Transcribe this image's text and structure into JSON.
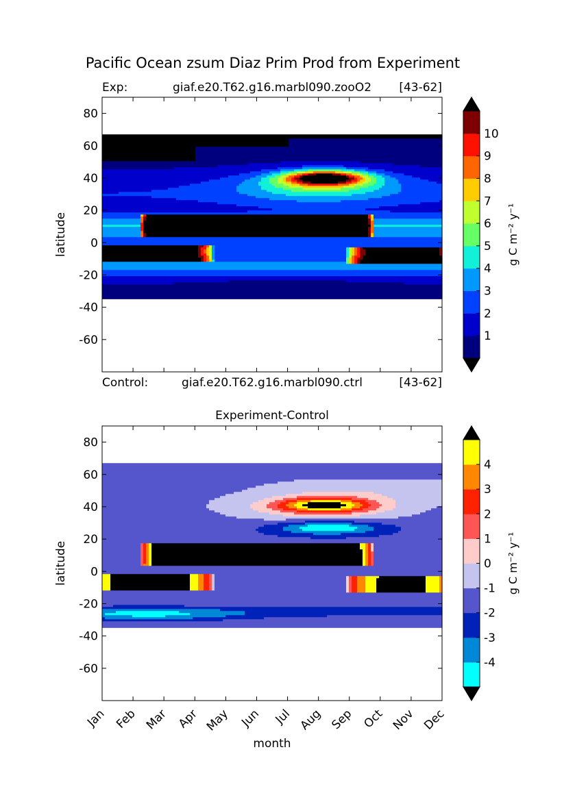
{
  "page_title": "Pacific Ocean zsum Diaz Prim Prod from Experiment",
  "chart_data": [
    {
      "type": "heatmap",
      "subtitle_left": "Exp:",
      "subtitle_center": "giaf.e20.T62.g16.marbl090.zooO2",
      "subtitle_right": "[43-62]",
      "bottom_left": "Control:",
      "bottom_center": "giaf.e20.T62.g16.marbl090.ctrl",
      "bottom_right": "[43-62]",
      "xlabel": "",
      "ylabel": "latitude",
      "x": [
        "Jan",
        "Feb",
        "Mar",
        "Apr",
        "May",
        "Jun",
        "Jul",
        "Aug",
        "Sep",
        "Oct",
        "Nov",
        "Dec"
      ],
      "y_ticks": [
        80,
        60,
        40,
        20,
        0,
        -20,
        -40,
        -60
      ],
      "ylim": [
        -80,
        90
      ],
      "data_lat_range": [
        -34,
        67
      ],
      "colorbar": {
        "label": "g C m⁻² y⁻¹",
        "levels": [
          0,
          1,
          2,
          3,
          4,
          5,
          6,
          7,
          8,
          9,
          10,
          11
        ],
        "tick_labels": [
          "1",
          "2",
          "3",
          "4",
          "5",
          "6",
          "7",
          "8",
          "9",
          "10"
        ],
        "colors": [
          "#00007f",
          "#0000cc",
          "#0040ff",
          "#0099ff",
          "#11f0d8",
          "#66ff66",
          "#c0ff30",
          "#ffcc00",
          "#ff6600",
          "#ff1100",
          "#7f0000"
        ],
        "under_color": "#000000",
        "over_color": "#000000"
      },
      "features": [
        {
          "name": "no data north",
          "month_start": 0,
          "month_end": 11,
          "lat_min": 50,
          "lat_max": 67,
          "value": -1
        },
        {
          "name": "north subtropical maximum",
          "month_start": 6.5,
          "month_end": 8.5,
          "lat_min": 36,
          "lat_max": 46,
          "value": 11
        },
        {
          "name": "equatorial north band",
          "month_start": 1.5,
          "month_end": 8.5,
          "lat_min": 3,
          "lat_max": 18,
          "value": -1
        },
        {
          "name": "equatorial south band early",
          "month_start": 0,
          "month_end": 3.5,
          "lat_min": -12,
          "lat_max": -2,
          "value": -1
        },
        {
          "name": "equatorial south band late",
          "month_start": 8.0,
          "month_end": 11,
          "lat_min": -13,
          "lat_max": -3,
          "value": -1
        }
      ]
    },
    {
      "type": "heatmap",
      "title": "Experiment-Control",
      "xlabel": "month",
      "ylabel": "latitude",
      "x": [
        "Jan",
        "Feb",
        "Mar",
        "Apr",
        "May",
        "Jun",
        "Jul",
        "Aug",
        "Sep",
        "Oct",
        "Nov",
        "Dec"
      ],
      "y_ticks": [
        80,
        60,
        40,
        20,
        0,
        -20,
        -40,
        -60
      ],
      "ylim": [
        -80,
        90
      ],
      "data_lat_range": [
        -34,
        67
      ],
      "colorbar": {
        "label": "g C m⁻² y⁻¹",
        "levels": [
          -5,
          -4,
          -3,
          -2,
          -1,
          0,
          1,
          2,
          3,
          4,
          5
        ],
        "tick_labels": [
          "-4",
          "-3",
          "-2",
          "-1",
          "0",
          "1",
          "2",
          "3",
          "4"
        ],
        "colors": [
          "#00ffff",
          "#0088d8",
          "#0022b8",
          "#5555cc",
          "#c4c4ee",
          "#ffcccc",
          "#ff5555",
          "#ff2200",
          "#ff8800",
          "#ffff00"
        ],
        "under_color": "#000000",
        "over_color": "#000000"
      },
      "features": [
        {
          "name": "north positive anomaly",
          "month_start": 6.2,
          "month_end": 8.2,
          "lat_min": 37,
          "lat_max": 45,
          "value": 5
        },
        {
          "name": "north negative anomaly",
          "month_start": 6.0,
          "month_end": 9.0,
          "lat_min": 22,
          "lat_max": 30,
          "value": -4.5
        },
        {
          "name": "equatorial north band",
          "month_start": 1.5,
          "month_end": 8.5,
          "lat_min": 3,
          "lat_max": 18,
          "value": 5
        },
        {
          "name": "equatorial south band early",
          "month_start": 0,
          "month_end": 3.5,
          "lat_min": -12,
          "lat_max": -2,
          "value": 5
        },
        {
          "name": "equatorial south band late",
          "month_start": 8.0,
          "month_end": 11,
          "lat_min": -13,
          "lat_max": -3,
          "value": 5
        }
      ]
    }
  ]
}
